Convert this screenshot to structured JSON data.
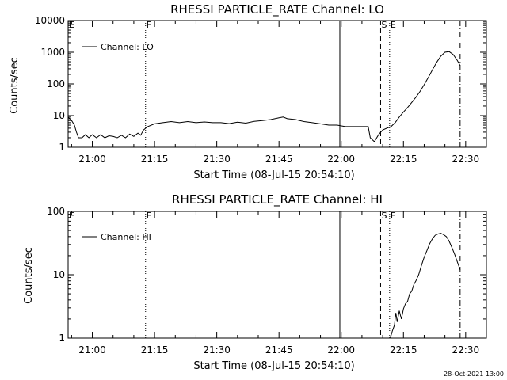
{
  "footer": {
    "timestamp": "28-Oct-2021 13:00"
  },
  "chart_data": [
    {
      "type": "line",
      "title": "RHESSI PARTICLE_RATE Channel: LO",
      "xlabel": "Start Time (08-Jul-15 20:54:10)",
      "ylabel": "Counts/sec",
      "yscale": "log",
      "xlim": [
        "20:54:10",
        "22:35:00"
      ],
      "ylim": [
        1,
        10000
      ],
      "x_tick_labels": [
        "21:00",
        "21:15",
        "21:30",
        "21:45",
        "22:00",
        "22:15",
        "22:30"
      ],
      "y_ticks": [
        1,
        10,
        100,
        1000,
        10000
      ],
      "y_tick_labels": [
        "1",
        "10",
        "100",
        "1000",
        "10000"
      ],
      "legend": {
        "placement": "top-left",
        "entries": [
          "Channel: LO"
        ]
      },
      "flags": [
        "E",
        "F",
        "S",
        "E"
      ],
      "markers": [
        {
          "time": "21:12:50",
          "style": "dotted",
          "flag": "F"
        },
        {
          "time": "21:59:40",
          "style": "solid",
          "flag": ""
        },
        {
          "time": "22:09:30",
          "style": "dashed",
          "flag": "S"
        },
        {
          "time": "22:11:40",
          "style": "dotted",
          "flag": "E"
        },
        {
          "time": "22:28:40",
          "style": "dashdot",
          "flag": ""
        }
      ],
      "series": [
        {
          "name": "Channel: LO",
          "points": [
            [
              "20:54:10",
              9
            ],
            [
              "20:55:00",
              7
            ],
            [
              "20:55:40",
              5
            ],
            [
              "20:56:10",
              3
            ],
            [
              "20:56:40",
              2
            ],
            [
              "20:57:30",
              2
            ],
            [
              "20:58:20",
              2.5
            ],
            [
              "20:59:10",
              2
            ],
            [
              "21:00:00",
              2.5
            ],
            [
              "21:01:00",
              2
            ],
            [
              "21:02:00",
              2.5
            ],
            [
              "21:03:00",
              2
            ],
            [
              "21:04:00",
              2.3
            ],
            [
              "21:05:00",
              2.2
            ],
            [
              "21:06:00",
              2
            ],
            [
              "21:07:00",
              2.4
            ],
            [
              "21:08:00",
              2
            ],
            [
              "21:09:00",
              2.6
            ],
            [
              "21:10:00",
              2.2
            ],
            [
              "21:11:00",
              2.8
            ],
            [
              "21:11:40",
              2.4
            ],
            [
              "21:12:20",
              3.5
            ],
            [
              "21:13:20",
              4.5
            ],
            [
              "21:15:00",
              5.5
            ],
            [
              "21:17:00",
              6
            ],
            [
              "21:19:00",
              6.5
            ],
            [
              "21:21:00",
              6
            ],
            [
              "21:23:00",
              6.5
            ],
            [
              "21:25:00",
              6
            ],
            [
              "21:27:00",
              6.3
            ],
            [
              "21:29:00",
              6
            ],
            [
              "21:31:00",
              6
            ],
            [
              "21:33:00",
              5.6
            ],
            [
              "21:35:00",
              6.2
            ],
            [
              "21:37:00",
              5.8
            ],
            [
              "21:39:00",
              6.6
            ],
            [
              "21:41:00",
              7
            ],
            [
              "21:43:00",
              7.5
            ],
            [
              "21:45:00",
              8.5
            ],
            [
              "21:46:00",
              9
            ],
            [
              "21:47:00",
              8
            ],
            [
              "21:49:00",
              7.5
            ],
            [
              "21:51:00",
              6.5
            ],
            [
              "21:53:00",
              6
            ],
            [
              "21:55:00",
              5.5
            ],
            [
              "21:57:00",
              5
            ],
            [
              "21:59:00",
              5
            ],
            [
              "22:01:00",
              4.5
            ],
            [
              "22:03:00",
              4.5
            ],
            [
              "22:05:00",
              4.5
            ],
            [
              "22:06:30",
              4.5
            ],
            [
              "22:07:00",
              2
            ],
            [
              "22:08:00",
              1.5
            ],
            [
              "22:09:00",
              2.5
            ],
            [
              "22:10:00",
              3.5
            ],
            [
              "22:11:00",
              4
            ],
            [
              "22:12:00",
              4.5
            ],
            [
              "22:13:00",
              6
            ],
            [
              "22:14:00",
              9
            ],
            [
              "22:15:00",
              13
            ],
            [
              "22:16:00",
              18
            ],
            [
              "22:17:00",
              26
            ],
            [
              "22:18:00",
              38
            ],
            [
              "22:19:00",
              58
            ],
            [
              "22:20:00",
              95
            ],
            [
              "22:21:00",
              160
            ],
            [
              "22:22:00",
              280
            ],
            [
              "22:23:00",
              480
            ],
            [
              "22:24:00",
              750
            ],
            [
              "22:25:00",
              1000
            ],
            [
              "22:26:00",
              1050
            ],
            [
              "22:27:00",
              850
            ],
            [
              "22:28:00",
              550
            ],
            [
              "22:28:40",
              380
            ]
          ]
        }
      ]
    },
    {
      "type": "line",
      "title": "RHESSI PARTICLE_RATE Channel: HI",
      "xlabel": "Start Time (08-Jul-15 20:54:10)",
      "ylabel": "Counts/sec",
      "yscale": "log",
      "xlim": [
        "20:54:10",
        "22:35:00"
      ],
      "ylim": [
        1,
        100
      ],
      "x_tick_labels": [
        "21:00",
        "21:15",
        "21:30",
        "21:45",
        "22:00",
        "22:15",
        "22:30"
      ],
      "y_ticks": [
        1,
        10,
        100
      ],
      "y_tick_labels": [
        "1",
        "10",
        "100"
      ],
      "legend": {
        "placement": "top-left",
        "entries": [
          "Channel: HI"
        ]
      },
      "flags": [
        "E",
        "F",
        "S",
        "E"
      ],
      "markers": [
        {
          "time": "21:12:50",
          "style": "dotted",
          "flag": "F"
        },
        {
          "time": "21:59:40",
          "style": "solid",
          "flag": ""
        },
        {
          "time": "22:09:30",
          "style": "dashed",
          "flag": "S"
        },
        {
          "time": "22:11:40",
          "style": "dotted",
          "flag": "E"
        },
        {
          "time": "22:28:40",
          "style": "dashdot",
          "flag": ""
        }
      ],
      "series": [
        {
          "name": "Channel: HI",
          "points": [
            [
              "22:11:50",
              1
            ],
            [
              "22:12:20",
              1.3
            ],
            [
              "22:12:50",
              1.6
            ],
            [
              "22:13:10",
              2.5
            ],
            [
              "22:13:30",
              1.8
            ],
            [
              "22:14:00",
              2.7
            ],
            [
              "22:14:30",
              2
            ],
            [
              "22:15:00",
              2.9
            ],
            [
              "22:15:30",
              3.5
            ],
            [
              "22:16:00",
              3.8
            ],
            [
              "22:16:30",
              5
            ],
            [
              "22:17:00",
              5.5
            ],
            [
              "22:17:30",
              7
            ],
            [
              "22:18:00",
              8
            ],
            [
              "22:18:40",
              10
            ],
            [
              "22:19:20",
              14
            ],
            [
              "22:20:00",
              19
            ],
            [
              "22:20:40",
              24
            ],
            [
              "22:21:20",
              31
            ],
            [
              "22:22:00",
              37
            ],
            [
              "22:22:40",
              42
            ],
            [
              "22:23:20",
              44
            ],
            [
              "22:24:00",
              45
            ],
            [
              "22:24:40",
              43
            ],
            [
              "22:25:20",
              40
            ],
            [
              "22:26:00",
              34
            ],
            [
              "22:26:40",
              27
            ],
            [
              "22:27:20",
              21
            ],
            [
              "22:28:00",
              16
            ],
            [
              "22:28:40",
              12
            ]
          ]
        }
      ]
    }
  ]
}
